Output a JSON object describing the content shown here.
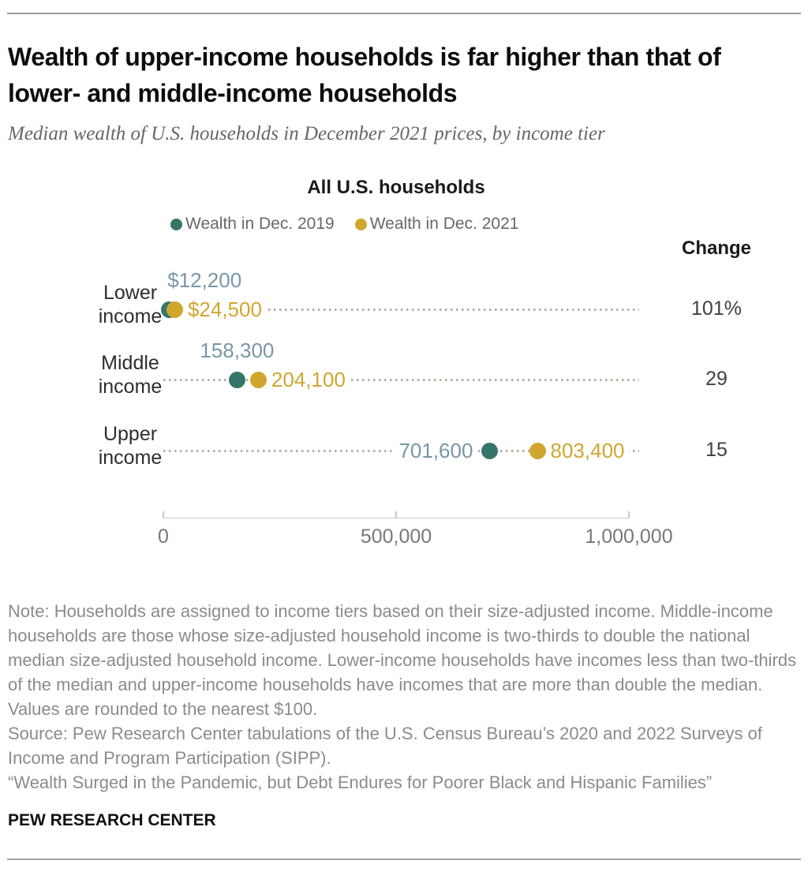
{
  "header": {
    "title": "Wealth of upper-income households is far higher than that of lower- and middle-income households",
    "subtitle": "Median wealth of U.S. households in December 2021 prices, by income tier"
  },
  "chart_data": {
    "type": "scatter",
    "variant": "dumbbell-dot-plot",
    "group_title": "All U.S. households",
    "categories": [
      "Lower income",
      "Middle income",
      "Upper income"
    ],
    "series": [
      {
        "name": "Wealth in Dec. 2019",
        "color": "#36756a",
        "values": [
          12200,
          158300,
          701600
        ],
        "labels": [
          "$12,200",
          "158,300",
          "701,600"
        ],
        "label_color": "#7897a7"
      },
      {
        "name": "Wealth in Dec. 2021",
        "color": "#d1a62f",
        "values": [
          24500,
          204100,
          803400
        ],
        "labels": [
          "$24,500",
          "204,100",
          "803,400"
        ],
        "label_color": "#d1a62f"
      }
    ],
    "change_header": "Change",
    "change_values": [
      "101%",
      "29",
      "15"
    ],
    "xlim": [
      0,
      1000000
    ],
    "xticks": [
      {
        "value": 0,
        "label": "0"
      },
      {
        "value": 500000,
        "label": "500,000"
      },
      {
        "value": 1000000,
        "label": "1,000,000"
      }
    ],
    "grid": false,
    "legend_position": "top",
    "leader_line_color": "#b4b1a8"
  },
  "notes": {
    "note": "Note: Households are assigned to income tiers based on their size-adjusted income. Middle-income households are those whose size-adjusted household income is two-thirds to double the national median size-adjusted household income. Lower-income households have incomes less than two-thirds of the median and upper-income households have incomes that are more than double the median. Values are rounded to the nearest $100.",
    "source": "Source: Pew Research Center tabulations of the U.S. Census Bureau’s 2020 and 2022 Surveys of Income and Program Participation (SIPP).",
    "quote": "“Wealth Surged in the Pandemic, but Debt Endures for Poorer Black and Hispanic Families”"
  },
  "footer": {
    "label": "PEW RESEARCH CENTER"
  }
}
